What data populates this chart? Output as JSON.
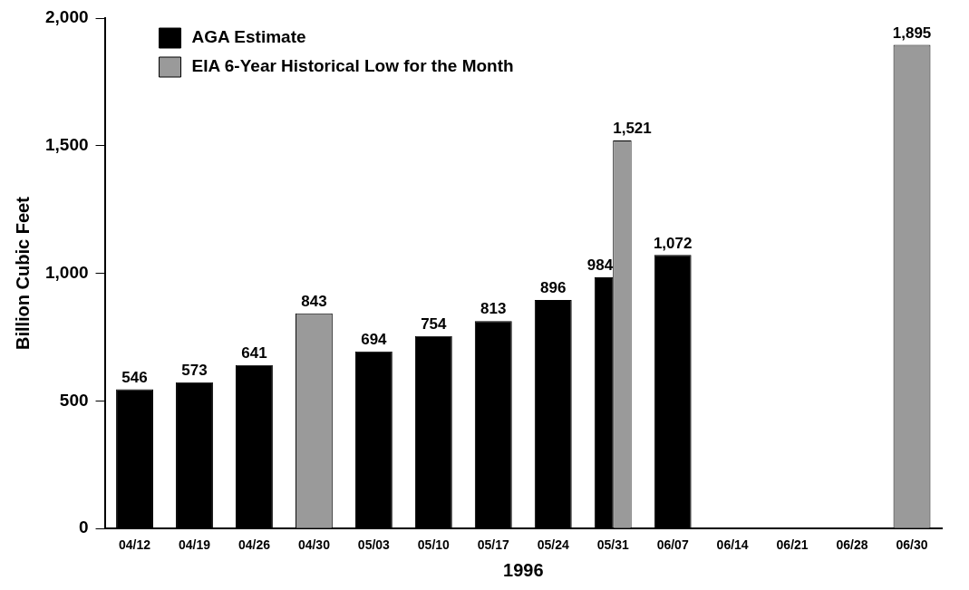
{
  "chart_data": {
    "type": "bar",
    "xlabel": "1996",
    "ylabel": "Billion Cubic Feet",
    "categories": [
      "04/12",
      "04/19",
      "04/26",
      "04/30",
      "05/03",
      "05/10",
      "05/17",
      "05/24",
      "05/31",
      "06/07",
      "06/14",
      "06/21",
      "06/28",
      "06/30"
    ],
    "series": [
      {
        "name": "AGA Estimate",
        "color": "#000000",
        "values": [
          546,
          573,
          641,
          null,
          694,
          754,
          813,
          896,
          984,
          1072,
          null,
          null,
          null,
          null
        ],
        "value_labels": [
          "546",
          "573",
          "641",
          null,
          "694",
          "754",
          "813",
          "896",
          "984",
          "1,072",
          null,
          null,
          null,
          null
        ]
      },
      {
        "name": "EIA 6-Year Historical Low for the Month",
        "color": "#9a9a9a",
        "values": [
          null,
          null,
          null,
          843,
          null,
          null,
          null,
          null,
          1521,
          null,
          null,
          null,
          null,
          1895
        ],
        "value_labels": [
          null,
          null,
          null,
          "843",
          null,
          null,
          null,
          null,
          "1,521",
          null,
          null,
          null,
          null,
          "1,895"
        ]
      }
    ],
    "ylim": [
      0,
      2000
    ],
    "yticks": [
      {
        "value": 0,
        "label": "0"
      },
      {
        "value": 500,
        "label": "500"
      },
      {
        "value": 1000,
        "label": "1,000"
      },
      {
        "value": 1500,
        "label": "1,500"
      },
      {
        "value": 2000,
        "label": "2,000"
      }
    ],
    "grid": false,
    "legend": "top left"
  }
}
